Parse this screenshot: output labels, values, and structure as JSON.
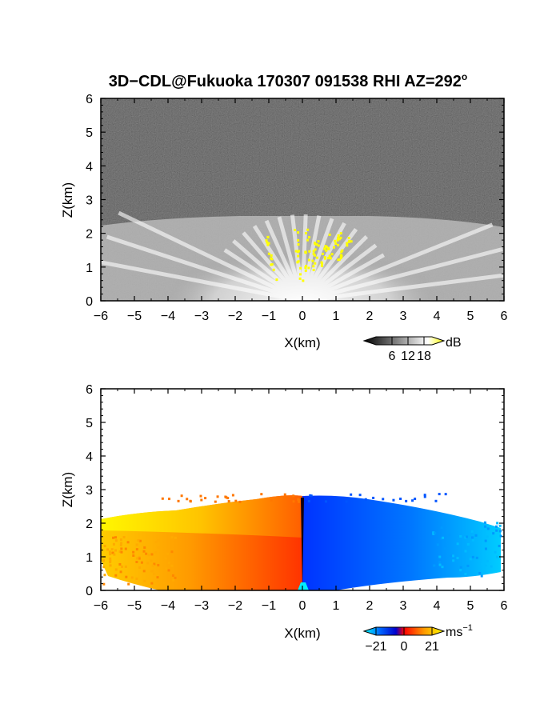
{
  "title": "3D−CDL@Fukuoka 170307 091538 RHI AZ=292",
  "title_degree": "o",
  "chart_data": [
    {
      "type": "heatmap",
      "panel": "snr",
      "xlabel": "X(km)",
      "ylabel": "Z(km)",
      "xlim": [
        -6,
        6
      ],
      "ylim": [
        0,
        6
      ],
      "xticks": [
        "−6",
        "−5",
        "−4",
        "−3",
        "−2",
        "−1",
        "0",
        "1",
        "2",
        "3",
        "4",
        "5",
        "6"
      ],
      "yticks": [
        "0",
        "1",
        "2",
        "3",
        "4",
        "5",
        "6"
      ],
      "colorbar": {
        "unit": "dB",
        "ticks": [
          "6",
          "12",
          "18"
        ],
        "range": [
          0,
          21
        ]
      },
      "colors": {
        "background_noise": "#2a2a2a",
        "high": "#ffff00"
      }
    },
    {
      "type": "heatmap",
      "panel": "velocity",
      "xlabel": "X(km)",
      "ylabel": "Z(km)",
      "xlim": [
        -6,
        6
      ],
      "ylim": [
        0,
        6
      ],
      "xticks": [
        "−6",
        "−5",
        "−4",
        "−3",
        "−2",
        "−1",
        "0",
        "1",
        "2",
        "3",
        "4",
        "5",
        "6"
      ],
      "yticks": [
        "0",
        "1",
        "2",
        "3",
        "4",
        "5",
        "6"
      ],
      "colorbar": {
        "unit": "ms",
        "unit_exponent": "−1",
        "ticks": [
          "−21",
          "0",
          "21"
        ],
        "range": [
          -21,
          21
        ]
      },
      "colors": {
        "negative": "#0044ff",
        "zero": "#ff0000",
        "positive": "#ffff00"
      }
    }
  ]
}
